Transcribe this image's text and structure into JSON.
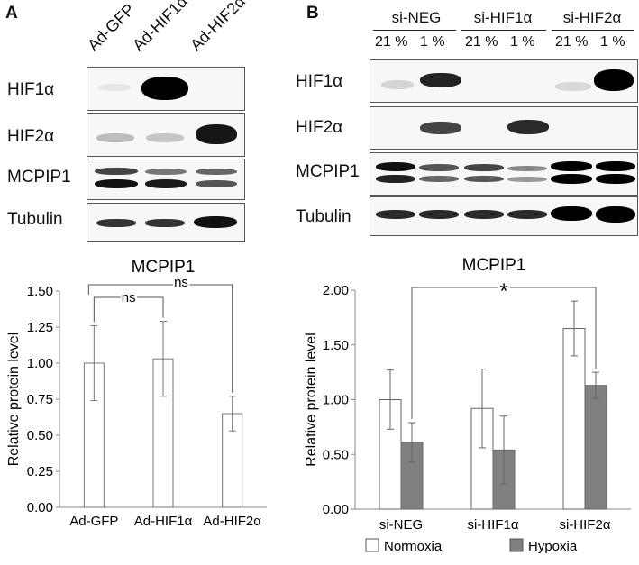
{
  "panelA": {
    "letter": "A",
    "lanes": [
      "Ad-GFP",
      "Ad-HIF1α",
      "Ad-HIF2α"
    ],
    "rows": [
      "HIF1α",
      "HIF2α",
      "MCPIP1",
      "Tubulin"
    ]
  },
  "panelB": {
    "letter": "B",
    "groups": [
      "si-NEG",
      "si-HIF1α",
      "si-HIF2α"
    ],
    "conditions": [
      "21 %",
      "1 %",
      "21 %",
      "1 %",
      "21 %",
      "1 %"
    ],
    "rows": [
      "HIF1α",
      "HIF2α",
      "MCPIP1",
      "Tubulin"
    ]
  },
  "chart_data": [
    {
      "type": "bar",
      "title": "MCPIP1",
      "ylabel": "Relative protein level",
      "categories": [
        "Ad-GFP",
        "Ad-HIF1α",
        "Ad-HIF2α"
      ],
      "values": [
        1.0,
        1.03,
        0.65
      ],
      "errors": [
        0.26,
        0.26,
        0.12
      ],
      "ylim": [
        0,
        1.5
      ],
      "yticks": [
        "0.00",
        "0.25",
        "0.50",
        "0.75",
        "1.00",
        "1.25",
        "1.50"
      ],
      "annotations": [
        "ns",
        "ns"
      ],
      "grid": false
    },
    {
      "type": "bar",
      "title": "MCPIP1",
      "ylabel": "Relative protein level",
      "categories": [
        "si-NEG",
        "si-HIF1α",
        "si-HIF2α"
      ],
      "series": [
        {
          "name": "Normoxia",
          "values": [
            1.0,
            0.92,
            1.65
          ],
          "errors": [
            0.27,
            0.36,
            0.25
          ],
          "color": "#ffffff"
        },
        {
          "name": "Hypoxia",
          "values": [
            0.61,
            0.54,
            1.13
          ],
          "errors": [
            0.18,
            0.31,
            0.12
          ],
          "color": "#808080"
        }
      ],
      "ylim": [
        0,
        2.0
      ],
      "yticks": [
        "0.00",
        "0.50",
        "1.00",
        "1.50",
        "2.00"
      ],
      "annotations": [
        "*"
      ],
      "legend": "bottom",
      "grid": false
    }
  ]
}
